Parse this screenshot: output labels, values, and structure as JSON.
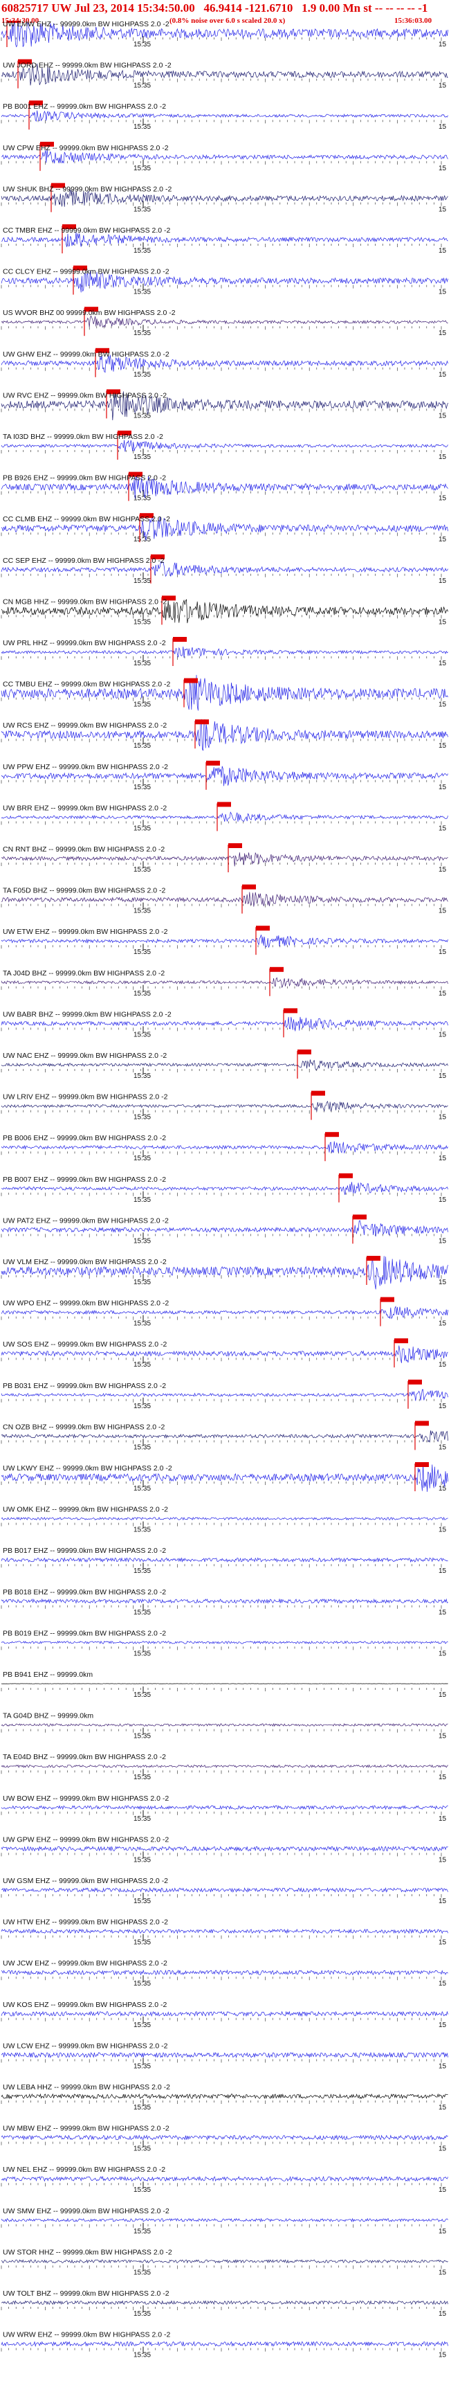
{
  "header": {
    "title": "60825717 UW Jul 23, 2014 15:34:50.00   46.9414 -121.6710   1.9 0.00 Mn st -- -- -- -- -1",
    "start_time": "15:34:30.00",
    "note": "(0.8% noise over 6.0 s scaled 20.0 x)",
    "end_time": "15:36:03.00"
  },
  "colors": {
    "pick": "#e00000",
    "blue": "#1f1fe8",
    "navy": "#1a1a6e",
    "purple": "#3a1a70",
    "black": "#000000"
  },
  "chart_data": {
    "type": "line",
    "title": "",
    "xlabel": "",
    "ylabel": "",
    "time_tick_label": "15:35",
    "edge_tick_label": "15",
    "traces": [
      {
        "label": "UW EMW EHZ -- 99999.0km BW  HIGHPASS  2.0 -2",
        "color": "blue",
        "amp": 18,
        "pick": "P"
      },
      {
        "label": "UW JORD EHZ -- 99999.0km BW  HIGHPASS  2.0 -2",
        "color": "navy",
        "amp": 13,
        "pick": "P"
      },
      {
        "label": "PB B001 EHZ -- 99999.0km BW  HIGHPASS  2.0 -2",
        "color": "blue",
        "amp": 6,
        "pick": "S"
      },
      {
        "label": "UW CPW EHZ -- 99999.0km BW  HIGHPASS  2.0 -2",
        "color": "blue",
        "amp": 8,
        "pick": "P"
      },
      {
        "label": "UW SHUK BHZ -- 99999.0km BW  HIGHPASS  2.0 -2",
        "color": "navy",
        "amp": 11,
        "pick": "P"
      },
      {
        "label": "CC TMBR EHZ -- 99999.0km BW  HIGHPASS  2.0 -2",
        "color": "blue",
        "amp": 9,
        "pick": "P"
      },
      {
        "label": "CC CLCY EHZ -- 99999.0km BW  HIGHPASS  2.0 -2",
        "color": "blue",
        "amp": 12,
        "pick": "S"
      },
      {
        "label": "US WVOR BHZ 00 99999.0km BW  HIGHPASS  2.0 -2",
        "color": "purple",
        "amp": 6,
        "pick": "P"
      },
      {
        "label": "UW GHW EHZ -- 99999.0km BW  HIGHPASS  2.0 -2",
        "color": "blue",
        "amp": 10,
        "pick": "P"
      },
      {
        "label": "UW RVC EHZ -- 99999.0km BW  HIGHPASS  2.0 -2",
        "color": "navy",
        "amp": 16,
        "pick": "P"
      },
      {
        "label": "TA I03D BHZ -- 99999.0km BW  HIGHPASS  2.0 -2",
        "color": "blue",
        "amp": 6,
        "pick": "P"
      },
      {
        "label": "PB B926 EHZ -- 99999.0km BW  HIGHPASS  2.0 -2",
        "color": "blue",
        "amp": 13,
        "pick": "P"
      },
      {
        "label": "CC CLMB EHZ -- 99999.0km BW  HIGHPASS  2.0 -2",
        "color": "blue",
        "amp": 14,
        "pick": "P"
      },
      {
        "label": "CC SEP EHZ -- 99999.0km BW  HIGHPASS  2.0 -2",
        "color": "blue",
        "amp": 9,
        "pick": "P"
      },
      {
        "label": "CN MGB HHZ -- 99999.0km BW  HIGHPASS  2.0 -2",
        "color": "black",
        "amp": 16,
        "pick": "P"
      },
      {
        "label": "UW PRL HHZ -- 99999.0km BW  HIGHPASS  2.0 -2",
        "color": "blue",
        "amp": 6,
        "pick": "P"
      },
      {
        "label": "CC TMBU EHZ -- 99999.0km BW  HIGHPASS  2.0 -2",
        "color": "blue",
        "amp": 20,
        "pick": "P"
      },
      {
        "label": "UW RCS EHZ -- 99999.0km BW  HIGHPASS  2.0 -2",
        "color": "blue",
        "amp": 16,
        "pick": "P"
      },
      {
        "label": "UW PPW EHZ -- 99999.0km BW  HIGHPASS  2.0 -2",
        "color": "blue",
        "amp": 12,
        "pick": "P"
      },
      {
        "label": "UW BRR EHZ -- 99999.0km BW  HIGHPASS  2.0 -2",
        "color": "blue",
        "amp": 6,
        "pick": "P"
      },
      {
        "label": "CN RNT BHZ -- 99999.0km BW  HIGHPASS  2.0 -2",
        "color": "purple",
        "amp": 8,
        "pick": "P"
      },
      {
        "label": "TA F05D BHZ -- 99999.0km BW  HIGHPASS  2.0 -2",
        "color": "purple",
        "amp": 9,
        "pick": "P"
      },
      {
        "label": "UW ETW EHZ -- 99999.0km BW  HIGHPASS  2.0 -2",
        "color": "blue",
        "amp": 7,
        "pick": "P"
      },
      {
        "label": "TA J04D BHZ -- 99999.0km BW  HIGHPASS  2.0 -2",
        "color": "purple",
        "amp": 6,
        "pick": "P"
      },
      {
        "label": "UW BABR BHZ -- 99999.0km BW  HIGHPASS  2.0 -2",
        "color": "blue",
        "amp": 8,
        "pick": "P"
      },
      {
        "label": "UW NAC EHZ -- 99999.0km BW  HIGHPASS  2.0 -2",
        "color": "navy",
        "amp": 6,
        "pick": "P"
      },
      {
        "label": "UW LRIV EHZ -- 99999.0km BW  HIGHPASS  2.0 -2",
        "color": "navy",
        "amp": 6,
        "pick": "P"
      },
      {
        "label": "PB B006 EHZ -- 99999.0km BW  HIGHPASS  2.0 -2",
        "color": "blue",
        "amp": 7,
        "pick": "P"
      },
      {
        "label": "PB B007 EHZ -- 99999.0km BW  HIGHPASS  2.0 -2",
        "color": "blue",
        "amp": 7,
        "pick": "P"
      },
      {
        "label": "UW PAT2 EHZ -- 99999.0km BW  HIGHPASS  2.0 -2",
        "color": "blue",
        "amp": 9,
        "pick": "P"
      },
      {
        "label": "UW VLM EHZ -- 99999.0km BW  HIGHPASS  2.0 -2",
        "color": "blue",
        "amp": 18,
        "pick": "P"
      },
      {
        "label": "UW WPO EHZ -- 99999.0km BW  HIGHPASS  2.0 -2",
        "color": "blue",
        "amp": 7,
        "pick": "P"
      },
      {
        "label": "UW SOS EHZ -- 99999.0km BW  HIGHPASS  2.0 -2",
        "color": "blue",
        "amp": 10,
        "pick": "P"
      },
      {
        "label": "PB B031 EHZ -- 99999.0km BW  HIGHPASS  2.0 -2",
        "color": "blue",
        "amp": 6,
        "pick": "P"
      },
      {
        "label": "CN OZB BHZ -- 99999.0km BW  HIGHPASS  2.0 -2",
        "color": "navy",
        "amp": 7,
        "pick": "P"
      },
      {
        "label": "UW LKWY EHZ -- 99999.0km BW  HIGHPASS  2.0 -2",
        "color": "blue",
        "amp": 15,
        "pick": "P"
      },
      {
        "label": "UW OMK EHZ -- 99999.0km BW  HIGHPASS  2.0 -2",
        "color": "blue",
        "amp": 5,
        "pick": ""
      },
      {
        "label": "PB B017 EHZ -- 99999.0km BW  HIGHPASS  2.0 -2",
        "color": "blue",
        "amp": 8,
        "pick": ""
      },
      {
        "label": "PB B018 EHZ -- 99999.0km BW  HIGHPASS  2.0 -2",
        "color": "blue",
        "amp": 8,
        "pick": ""
      },
      {
        "label": "PB B019 EHZ -- 99999.0km BW  HIGHPASS  2.0 -2",
        "color": "blue",
        "amp": 5,
        "pick": ""
      },
      {
        "label": "PB B941 EHZ -- 99999.0km",
        "color": "black",
        "amp": 0.5,
        "pick": ""
      },
      {
        "label": "TA G04D BHZ -- 99999.0km",
        "color": "purple",
        "amp": 5,
        "pick": ""
      },
      {
        "label": "TA E04D BHZ -- 99999.0km BW  HIGHPASS  2.0 -2",
        "color": "purple",
        "amp": 5,
        "pick": ""
      },
      {
        "label": "UW BOW EHZ -- 99999.0km BW  HIGHPASS  2.0 -2",
        "color": "blue",
        "amp": 7,
        "pick": ""
      },
      {
        "label": "UW GPW EHZ -- 99999.0km BW  HIGHPASS  2.0 -2",
        "color": "blue",
        "amp": 9,
        "pick": ""
      },
      {
        "label": "UW GSM EHZ -- 99999.0km BW  HIGHPASS  2.0 -2",
        "color": "blue",
        "amp": 8,
        "pick": ""
      },
      {
        "label": "UW HTW EHZ -- 99999.0km BW  HIGHPASS  2.0 -2",
        "color": "blue",
        "amp": 8,
        "pick": ""
      },
      {
        "label": "UW JCW EHZ -- 99999.0km BW  HIGHPASS  2.0 -2",
        "color": "blue",
        "amp": 9,
        "pick": ""
      },
      {
        "label": "UW KOS EHZ -- 99999.0km BW  HIGHPASS  2.0 -2",
        "color": "blue",
        "amp": 9,
        "pick": ""
      },
      {
        "label": "UW LCW EHZ -- 99999.0km BW  HIGHPASS  2.0 -2",
        "color": "blue",
        "amp": 10,
        "pick": ""
      },
      {
        "label": "UW LEBA HHZ -- 99999.0km BW  HIGHPASS  2.0 -2",
        "color": "black",
        "amp": 9,
        "pick": ""
      },
      {
        "label": "UW MBW EHZ -- 99999.0km BW  HIGHPASS  2.0 -2",
        "color": "blue",
        "amp": 9,
        "pick": ""
      },
      {
        "label": "UW NEL EHZ -- 99999.0km BW  HIGHPASS  2.0 -2",
        "color": "blue",
        "amp": 9,
        "pick": ""
      },
      {
        "label": "UW SMW EHZ -- 99999.0km BW  HIGHPASS  2.0 -2",
        "color": "blue",
        "amp": 6,
        "pick": ""
      },
      {
        "label": "UW STOR HHZ -- 99999.0km BW  HIGHPASS  2.0 -2",
        "color": "navy",
        "amp": 6,
        "pick": ""
      },
      {
        "label": "UW TOLT BHZ -- 99999.0km BW  HIGHPASS  2.0 -2",
        "color": "navy",
        "amp": 7,
        "pick": ""
      },
      {
        "label": "UW WRW EHZ -- 99999.0km BW  HIGHPASS  2.0 -2",
        "color": "blue",
        "amp": 9,
        "pick": ""
      }
    ]
  }
}
